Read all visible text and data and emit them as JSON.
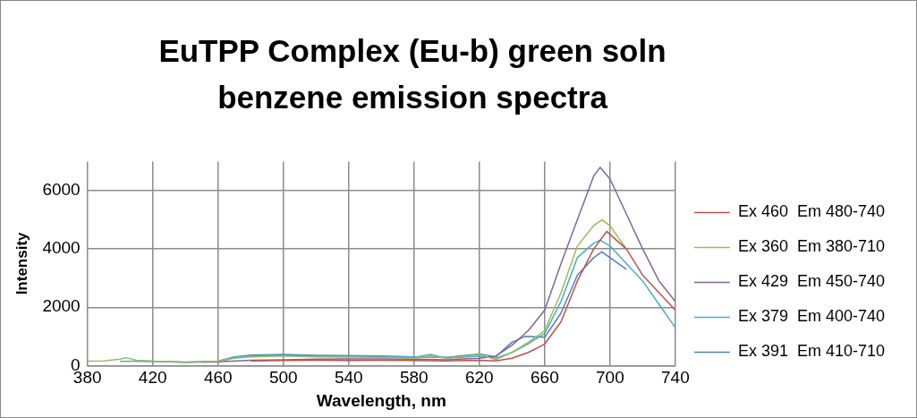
{
  "chart_data": {
    "type": "line",
    "title": "EuTPP Complex (Eu-b) green soln benzene emission spectra",
    "xlabel": "Wavelength, nm",
    "ylabel": "Intensity",
    "xlim": [
      380,
      740
    ],
    "xticks": [
      380,
      420,
      460,
      500,
      540,
      580,
      620,
      660,
      700,
      740
    ],
    "ylim": [
      0,
      7000
    ],
    "yticks": [
      0,
      2000,
      4000,
      6000
    ],
    "grid": true,
    "legend": "right",
    "marker": "none",
    "series": [
      {
        "name": "Ex 460  Em 480-740",
        "color": "#c0504d",
        "x": [
          480,
          500,
          520,
          540,
          560,
          580,
          600,
          620,
          630,
          640,
          650,
          660,
          670,
          680,
          690,
          698,
          710,
          720,
          730,
          740
        ],
        "values": [
          160,
          170,
          180,
          170,
          180,
          170,
          160,
          180,
          160,
          250,
          450,
          740,
          1500,
          2900,
          4000,
          4600,
          4000,
          3100,
          2500,
          1900
        ]
      },
      {
        "name": "Ex 360  Em 380-710",
        "color": "#9bbb59",
        "x": [
          380,
          390,
          400,
          404,
          410,
          420,
          440,
          460,
          470,
          480,
          500,
          520,
          540,
          560,
          580,
          590,
          600,
          620,
          630,
          640,
          650,
          660,
          670,
          680,
          690,
          695,
          700,
          710
        ],
        "values": [
          150,
          160,
          220,
          270,
          180,
          150,
          120,
          150,
          250,
          300,
          330,
          300,
          290,
          280,
          250,
          330,
          250,
          380,
          200,
          450,
          800,
          1200,
          2500,
          4100,
          4800,
          5000,
          4800,
          4000
        ]
      },
      {
        "name": "Ex 429  Em 450-740",
        "color": "#8064a2",
        "x": [
          450,
          460,
          480,
          500,
          520,
          540,
          560,
          580,
          600,
          620,
          630,
          640,
          650,
          660,
          670,
          680,
          690,
          694,
          700,
          710,
          720,
          730,
          740
        ],
        "values": [
          120,
          130,
          180,
          200,
          220,
          230,
          230,
          220,
          200,
          250,
          320,
          700,
          1200,
          1900,
          3500,
          5000,
          6500,
          6800,
          6400,
          5200,
          4000,
          2900,
          2200
        ]
      },
      {
        "name": "Ex 379  Em 400-740",
        "color": "#4bacc6",
        "x": [
          400,
          410,
          420,
          440,
          460,
          470,
          480,
          500,
          520,
          540,
          560,
          580,
          590,
          600,
          620,
          630,
          640,
          650,
          660,
          670,
          680,
          690,
          694,
          700,
          710,
          720,
          730,
          740
        ],
        "values": [
          140,
          150,
          150,
          110,
          130,
          280,
          330,
          350,
          320,
          320,
          300,
          280,
          380,
          250,
          330,
          250,
          450,
          750,
          1100,
          2200,
          3700,
          4200,
          4300,
          4100,
          3500,
          2900,
          2100,
          1300
        ]
      },
      {
        "name": "Ex 391  Em 410-710",
        "color": "#4f81bd",
        "x": [
          410,
          420,
          440,
          460,
          470,
          480,
          500,
          520,
          540,
          560,
          580,
          600,
          620,
          630,
          640,
          648,
          660,
          670,
          680,
          690,
          695,
          700,
          710
        ],
        "values": [
          150,
          140,
          110,
          150,
          300,
          360,
          380,
          350,
          340,
          330,
          300,
          280,
          400,
          300,
          800,
          1000,
          970,
          1800,
          3100,
          3700,
          3900,
          3700,
          3300
        ]
      }
    ]
  }
}
